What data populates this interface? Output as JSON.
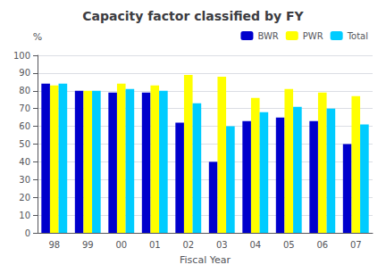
{
  "chart_data": {
    "type": "bar",
    "title": "Capacity factor classified by FY",
    "xlabel": "Fiscal Year",
    "ylabel": "%",
    "categories": [
      "98",
      "99",
      "00",
      "01",
      "02",
      "03",
      "04",
      "05",
      "06",
      "07"
    ],
    "series": [
      {
        "name": "BWR",
        "color": "#0000CC",
        "values": [
          84,
          80,
          79,
          79,
          62,
          40,
          63,
          65,
          63,
          50
        ]
      },
      {
        "name": "PWR",
        "color": "#FFFF00",
        "values": [
          83,
          80,
          84,
          83,
          89,
          88,
          76,
          81,
          79,
          77
        ]
      },
      {
        "name": "Total",
        "color": "#00CCFF",
        "values": [
          84,
          80,
          81,
          80,
          73,
          60,
          68,
          71,
          70,
          61
        ]
      }
    ],
    "ylim": [
      0,
      100
    ],
    "yticks": [
      0,
      10,
      20,
      30,
      40,
      50,
      60,
      70,
      80,
      90,
      100
    ],
    "grid": true,
    "legend": "upper right"
  }
}
